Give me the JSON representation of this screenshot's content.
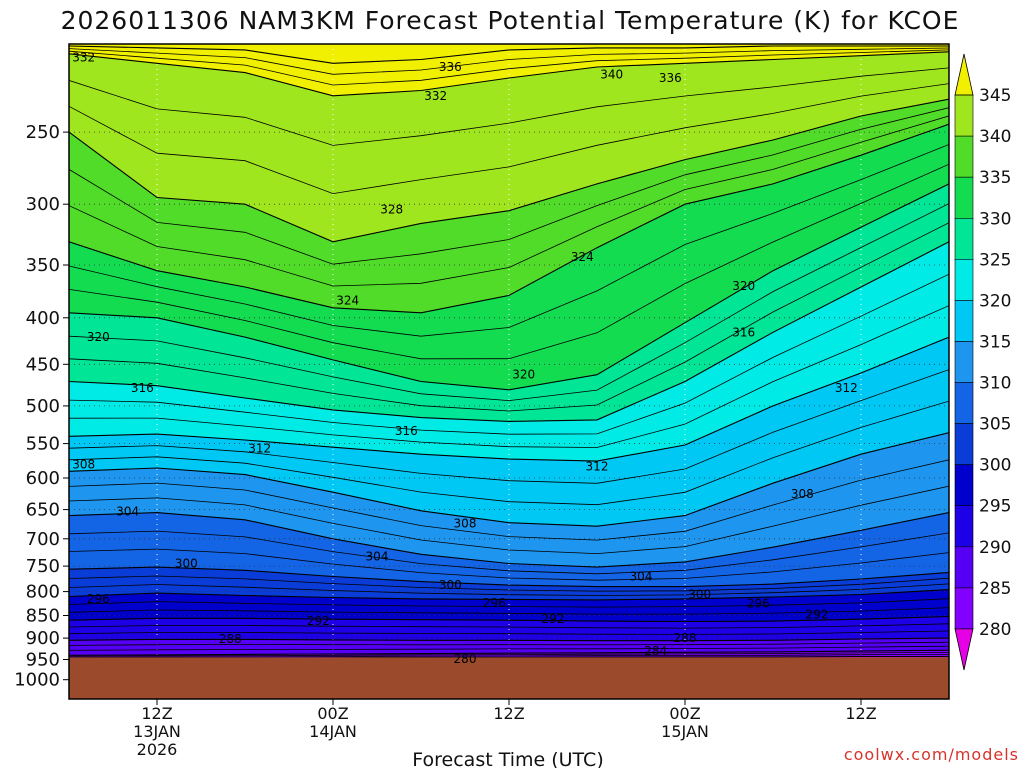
{
  "chart_data": {
    "type": "heatmap",
    "title": "2026011306 NAM3KM Forecast Potential Temperature (K) for KCOE",
    "xlabel": "Forecast Time (UTC)",
    "ylabel": "",
    "credit": "coolwx.com/models",
    "y_ticks": [
      250,
      300,
      350,
      400,
      450,
      500,
      550,
      600,
      650,
      700,
      750,
      800,
      850,
      900,
      950,
      1000
    ],
    "x_ticks": [
      {
        "hour": 6,
        "line1": "12Z",
        "line2": "13JAN",
        "line3": "2026"
      },
      {
        "hour": 18,
        "line1": "00Z",
        "line2": "14JAN",
        "line3": ""
      },
      {
        "hour": 30,
        "line1": "12Z",
        "line2": "",
        "line3": ""
      },
      {
        "hour": 42,
        "line1": "00Z",
        "line2": "15JAN",
        "line3": ""
      },
      {
        "hour": 54,
        "line1": "12Z",
        "line2": "",
        "line3": ""
      }
    ],
    "x_range_hours": [
      0,
      60
    ],
    "y_range_hpa": [
      200,
      1050
    ],
    "y_scale": "log-pressure",
    "surface_pressure_hpa": 945,
    "legend": {
      "placement": "right",
      "levels": [
        280,
        285,
        290,
        295,
        300,
        305,
        310,
        315,
        320,
        325,
        330,
        335,
        340,
        345
      ],
      "colors": [
        "#e600e6",
        "#b400ff",
        "#8200ff",
        "#5500f5",
        "#1e00e6",
        "#0000cd",
        "#0a3cd7",
        "#1464e6",
        "#1e96f0",
        "#00c8f5",
        "#00ebe6",
        "#00e696",
        "#14dc50",
        "#50dc28",
        "#a0e61e",
        "#f0f000"
      ]
    },
    "ground_color": "#9b4a2b",
    "grid": true,
    "contour_lines": [
      {
        "level": 280,
        "p": [
          948,
          947,
          947,
          946,
          945,
          945,
          944,
          944,
          944,
          943,
          943
        ]
      },
      {
        "level": 284,
        "p": [
          940,
          939,
          938,
          937,
          936,
          935,
          934,
          933,
          932,
          930,
          928
        ]
      },
      {
        "level": 288,
        "p": [
          905,
          903,
          903,
          904,
          905,
          905,
          906,
          906,
          905,
          902,
          900
        ]
      },
      {
        "level": 292,
        "p": [
          860,
          856,
          856,
          858,
          859,
          860,
          862,
          863,
          862,
          858,
          852
        ]
      },
      {
        "level": 296,
        "p": [
          810,
          803,
          808,
          812,
          815,
          816,
          817,
          815,
          811,
          806,
          796
        ]
      },
      {
        "level": 300,
        "p": [
          756,
          752,
          758,
          770,
          780,
          787,
          790,
          790,
          785,
          775,
          762
        ]
      },
      {
        "level": 304,
        "p": [
          660,
          655,
          667,
          700,
          728,
          745,
          752,
          742,
          715,
          685,
          655
        ]
      },
      {
        "level": 308,
        "p": [
          590,
          585,
          595,
          622,
          652,
          672,
          678,
          660,
          608,
          565,
          535
        ]
      },
      {
        "level": 312,
        "p": [
          540,
          537,
          545,
          555,
          565,
          572,
          575,
          552,
          500,
          460,
          420
        ]
      },
      {
        "level": 316,
        "p": [
          470,
          475,
          490,
          505,
          515,
          520,
          518,
          470,
          415,
          370,
          330
        ]
      },
      {
        "level": 320,
        "p": [
          395,
          400,
          420,
          445,
          470,
          480,
          462,
          405,
          355,
          318,
          285
        ]
      },
      {
        "level": 324,
        "p": [
          330,
          355,
          370,
          390,
          395,
          378,
          335,
          300,
          285,
          265,
          245
        ]
      },
      {
        "level": 328,
        "p": [
          250,
          295,
          300,
          330,
          315,
          305,
          285,
          268,
          255,
          240,
          230
        ]
      },
      {
        "level": 332,
        "p": [
          205,
          210,
          215,
          228,
          225,
          218,
          212,
          210,
          208,
          206,
          204
        ]
      },
      {
        "level": 336,
        "p": [
          201,
          202,
          203,
          210,
          208,
          203,
          202,
          202,
          201,
          201,
          201
        ]
      }
    ],
    "contour_labels": [
      {
        "text": "332",
        "hour": 1.0,
        "p": 207
      },
      {
        "text": "336",
        "hour": 26.0,
        "p": 212
      },
      {
        "text": "340",
        "hour": 37.0,
        "p": 216
      },
      {
        "text": "336",
        "hour": 41.0,
        "p": 218
      },
      {
        "text": "332",
        "hour": 25.0,
        "p": 228
      },
      {
        "text": "328",
        "hour": 22.0,
        "p": 304
      },
      {
        "text": "324",
        "hour": 35.0,
        "p": 343
      },
      {
        "text": "320",
        "hour": 46.0,
        "p": 369
      },
      {
        "text": "324",
        "hour": 19.0,
        "p": 383
      },
      {
        "text": "316",
        "hour": 46.0,
        "p": 415
      },
      {
        "text": "320",
        "hour": 2.0,
        "p": 420
      },
      {
        "text": "320",
        "hour": 31.0,
        "p": 462
      },
      {
        "text": "316",
        "hour": 5.0,
        "p": 478
      },
      {
        "text": "312",
        "hour": 53.0,
        "p": 478
      },
      {
        "text": "316",
        "hour": 23.0,
        "p": 533
      },
      {
        "text": "312",
        "hour": 13.0,
        "p": 557
      },
      {
        "text": "308",
        "hour": 1.0,
        "p": 580
      },
      {
        "text": "312",
        "hour": 36.0,
        "p": 583
      },
      {
        "text": "308",
        "hour": 50.0,
        "p": 625
      },
      {
        "text": "304",
        "hour": 4.0,
        "p": 653
      },
      {
        "text": "308",
        "hour": 27.0,
        "p": 673
      },
      {
        "text": "304",
        "hour": 21.0,
        "p": 732
      },
      {
        "text": "300",
        "hour": 8.0,
        "p": 745
      },
      {
        "text": "304",
        "hour": 39.0,
        "p": 770
      },
      {
        "text": "300",
        "hour": 26.0,
        "p": 787
      },
      {
        "text": "300",
        "hour": 43.0,
        "p": 806
      },
      {
        "text": "296",
        "hour": 2.0,
        "p": 815
      },
      {
        "text": "296",
        "hour": 29.0,
        "p": 823
      },
      {
        "text": "296",
        "hour": 47.0,
        "p": 825
      },
      {
        "text": "292",
        "hour": 51.0,
        "p": 848
      },
      {
        "text": "292",
        "hour": 17.0,
        "p": 862
      },
      {
        "text": "292",
        "hour": 33.0,
        "p": 857
      },
      {
        "text": "288",
        "hour": 11.0,
        "p": 902
      },
      {
        "text": "288",
        "hour": 42.0,
        "p": 900
      },
      {
        "text": "284",
        "hour": 40.0,
        "p": 930
      },
      {
        "text": "280",
        "hour": 27.0,
        "p": 949
      }
    ]
  }
}
